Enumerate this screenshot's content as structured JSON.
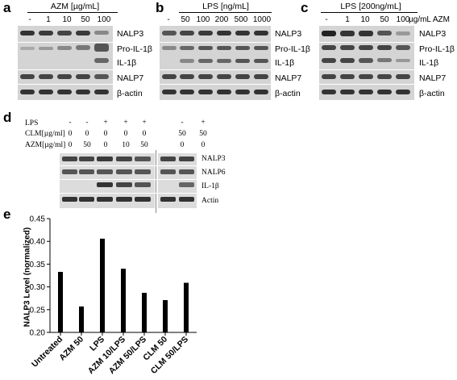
{
  "panel_a": {
    "letter": "a",
    "header": "AZM [µg/mL]",
    "lanes": [
      "-",
      "1",
      "10",
      "50",
      "100"
    ],
    "rows": [
      "NALP3",
      "Pro-IL-1β",
      "IL-1β",
      "NALP7",
      "β-actin"
    ]
  },
  "panel_b": {
    "letter": "b",
    "header": "LPS [ng/mL]",
    "lanes": [
      "-",
      "50",
      "100",
      "200",
      "500",
      "1000"
    ],
    "rows": [
      "NALP3",
      "Pro-IL-1β",
      "IL-1β",
      "NALP7",
      "β-actin"
    ]
  },
  "panel_c": {
    "letter": "c",
    "header": "LPS [200ng/mL]",
    "lanes": [
      "-",
      "1",
      "10",
      "50",
      "100"
    ],
    "unit": "µg/mL AZM",
    "rows": [
      "NALP3",
      "Pro-IL-1β",
      "IL-1β",
      "NALP7",
      "β-actin"
    ]
  },
  "panel_d": {
    "letter": "d",
    "condition_labels": [
      "LPS",
      "CLM[µg/ml]",
      "AZM[µg/ml]"
    ],
    "lps": [
      "-",
      "-",
      "+",
      "+",
      "+",
      "-",
      "+"
    ],
    "clm": [
      "0",
      "0",
      "0",
      "0",
      "0",
      "50",
      "50"
    ],
    "azm": [
      "0",
      "50",
      "0",
      "10",
      "50",
      "0",
      "0"
    ],
    "rows": [
      "NALP3",
      "NALP6",
      "IL-1β",
      "Actin"
    ]
  },
  "panel_e": {
    "letter": "e"
  },
  "chart_data": {
    "type": "bar",
    "title": "",
    "xlabel": "",
    "ylabel": "NALP3 Level (normalized)",
    "categories": [
      "Untreated",
      "AZM 50",
      "LPS",
      "AZM 10/LPS",
      "AZM 50/LPS",
      "CLM 50",
      "CLM 50/LPS"
    ],
    "values": [
      0.333,
      0.257,
      0.406,
      0.34,
      0.287,
      0.271,
      0.309
    ],
    "ylim": [
      0.2,
      0.45
    ],
    "yticks": [
      "0.20",
      "0.25",
      "0.30",
      "0.35",
      "0.40",
      "0.45"
    ],
    "grid": false,
    "bar_color": "#000000"
  }
}
